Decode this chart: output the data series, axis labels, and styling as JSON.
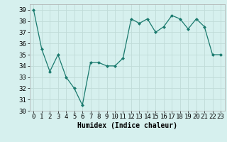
{
  "x": [
    0,
    1,
    2,
    3,
    4,
    5,
    6,
    7,
    8,
    9,
    10,
    11,
    12,
    13,
    14,
    15,
    16,
    17,
    18,
    19,
    20,
    21,
    22,
    23
  ],
  "y": [
    39,
    35.5,
    33.5,
    35,
    33,
    32,
    30.5,
    34.3,
    34.3,
    34,
    34,
    34.7,
    38.2,
    37.8,
    38.2,
    37,
    37.5,
    38.5,
    38.2,
    37.3,
    38.2,
    37.5,
    35,
    35
  ],
  "line_color": "#1a7a6e",
  "marker": "D",
  "marker_size": 2,
  "bg_color": "#d6f0ee",
  "grid_color": "#c0dbd8",
  "xlabel": "Humidex (Indice chaleur)",
  "ylim": [
    30,
    39.5
  ],
  "xlim": [
    -0.5,
    23.5
  ],
  "yticks": [
    30,
    31,
    32,
    33,
    34,
    35,
    36,
    37,
    38,
    39
  ],
  "xticks": [
    0,
    1,
    2,
    3,
    4,
    5,
    6,
    7,
    8,
    9,
    10,
    11,
    12,
    13,
    14,
    15,
    16,
    17,
    18,
    19,
    20,
    21,
    22,
    23
  ],
  "label_fontsize": 7,
  "tick_fontsize": 6.5
}
